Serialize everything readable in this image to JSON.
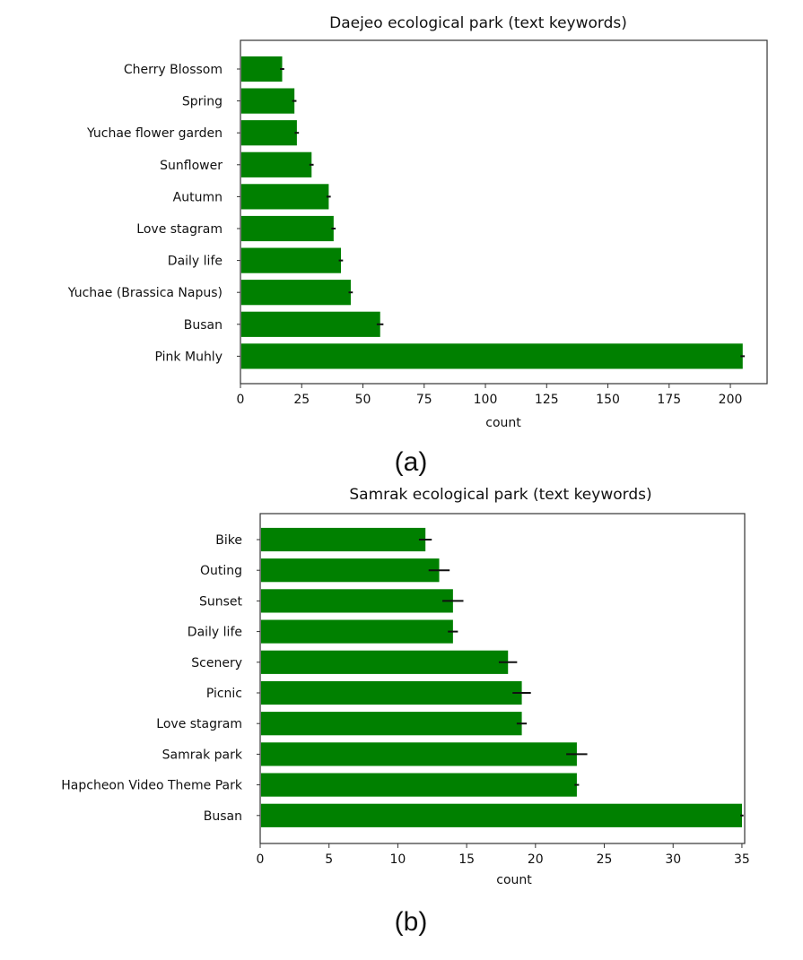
{
  "figure": {
    "bar_color": "#008000",
    "error_color": "#111111",
    "captions": [
      "(a)",
      "(b)"
    ]
  },
  "chart_data": [
    {
      "type": "bar",
      "orientation": "horizontal",
      "title": "Daejeo ecological park (text keywords)",
      "xlabel": "count",
      "ylabel": "",
      "xlim": [
        0,
        215
      ],
      "xticks": [
        0,
        25,
        50,
        75,
        100,
        125,
        150,
        175,
        200
      ],
      "categories": [
        "Cherry Blossom",
        "Spring",
        "Yuchae flower garden",
        "Sunflower",
        "Autumn",
        "Love stagram",
        "Daily life",
        "Yuchae (Brassica Napus)",
        "Busan",
        "Pink Muhly"
      ],
      "values": [
        17,
        22,
        23,
        29,
        36,
        38,
        41,
        45,
        57,
        205
      ],
      "errors": [
        0.5,
        0.5,
        0.5,
        0.5,
        0.5,
        0.5,
        0.5,
        0.5,
        1,
        0.5
      ],
      "grid": false,
      "legend": "none"
    },
    {
      "type": "bar",
      "orientation": "horizontal",
      "title": "Samrak ecological park (text keywords)",
      "xlabel": "count",
      "ylabel": "",
      "xlim": [
        0,
        35.2
      ],
      "xticks": [
        0,
        5,
        10,
        15,
        20,
        25,
        30,
        35
      ],
      "categories": [
        "Bike",
        "Outing",
        "Sunset",
        "Daily life",
        "Scenery",
        "Picnic",
        "Love stagram",
        "Samrak park",
        "Hapcheon Video Theme Park",
        "Busan"
      ],
      "values": [
        12,
        13,
        14,
        14,
        18,
        19,
        19,
        23,
        23,
        35
      ],
      "errors": [
        0.4,
        0.7,
        0.7,
        0.3,
        0.6,
        0.6,
        0.3,
        0.7,
        0.1,
        0.05
      ],
      "grid": false,
      "legend": "none"
    }
  ]
}
